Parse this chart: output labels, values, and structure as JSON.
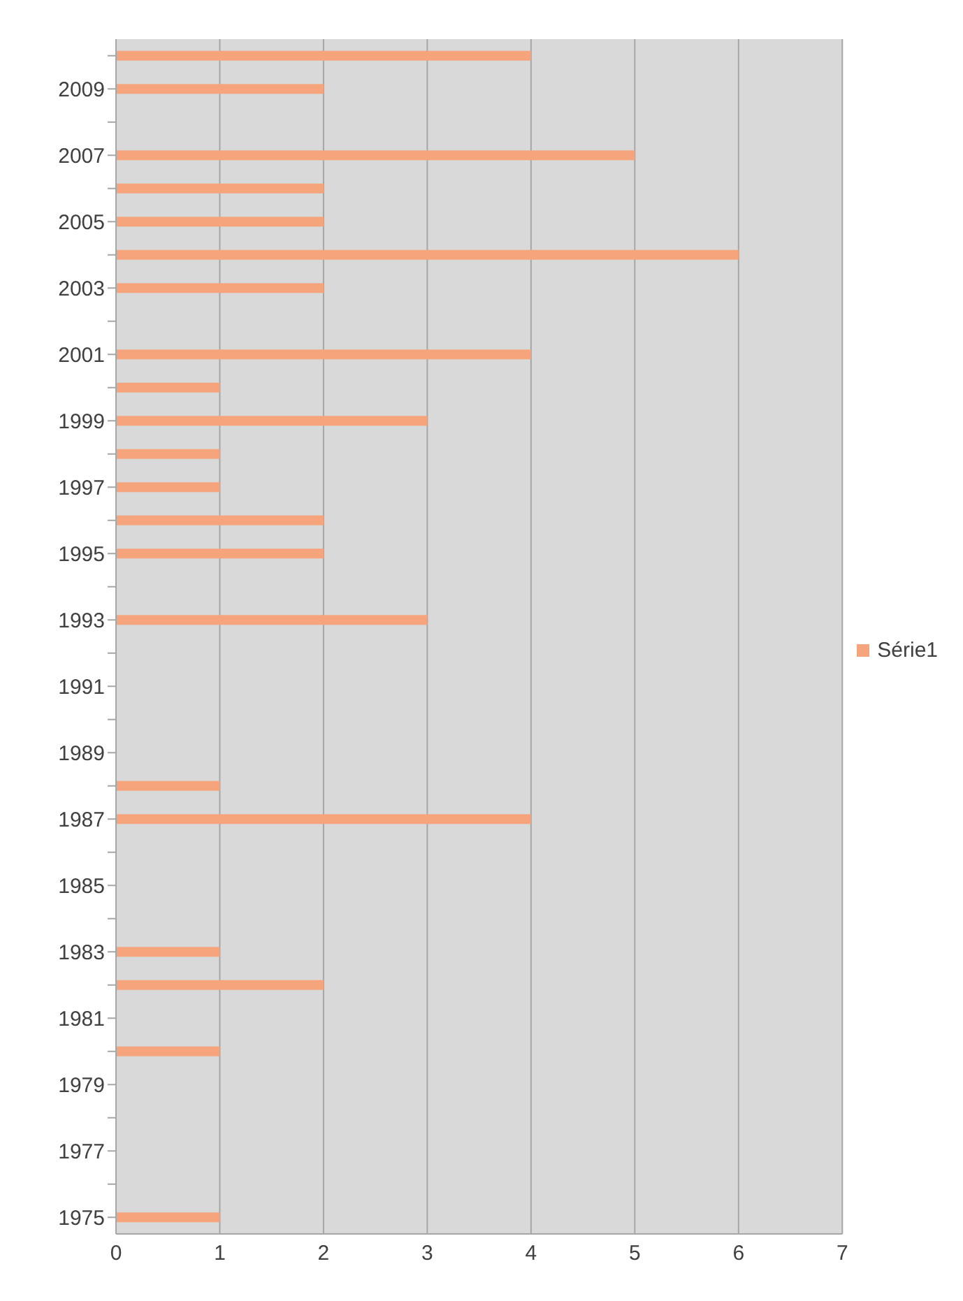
{
  "chart_data": {
    "type": "bar",
    "orientation": "horizontal",
    "categories": [
      null,
      "2009",
      null,
      "2007",
      null,
      "2005",
      null,
      "2003",
      null,
      "2001",
      null,
      "1999",
      null,
      "1997",
      null,
      "1995",
      null,
      "1993",
      null,
      "1991",
      null,
      "1989",
      null,
      "1987",
      null,
      "1985",
      null,
      "1983",
      null,
      "1981",
      null,
      "1979",
      null,
      "1977",
      null,
      "1975"
    ],
    "series": [
      {
        "name": "Série1",
        "color": "#f5a47c",
        "values": [
          4,
          2,
          null,
          5,
          2,
          2,
          6,
          2,
          null,
          4,
          1,
          3,
          1,
          1,
          2,
          2,
          null,
          3,
          null,
          null,
          null,
          null,
          1,
          4,
          null,
          null,
          null,
          1,
          2,
          null,
          1,
          null,
          null,
          null,
          null,
          1
        ]
      }
    ],
    "xlim": [
      0,
      7
    ],
    "xticks": [
      0,
      1,
      2,
      3,
      4,
      5,
      6,
      7
    ],
    "grid": "x",
    "legend": "right"
  }
}
